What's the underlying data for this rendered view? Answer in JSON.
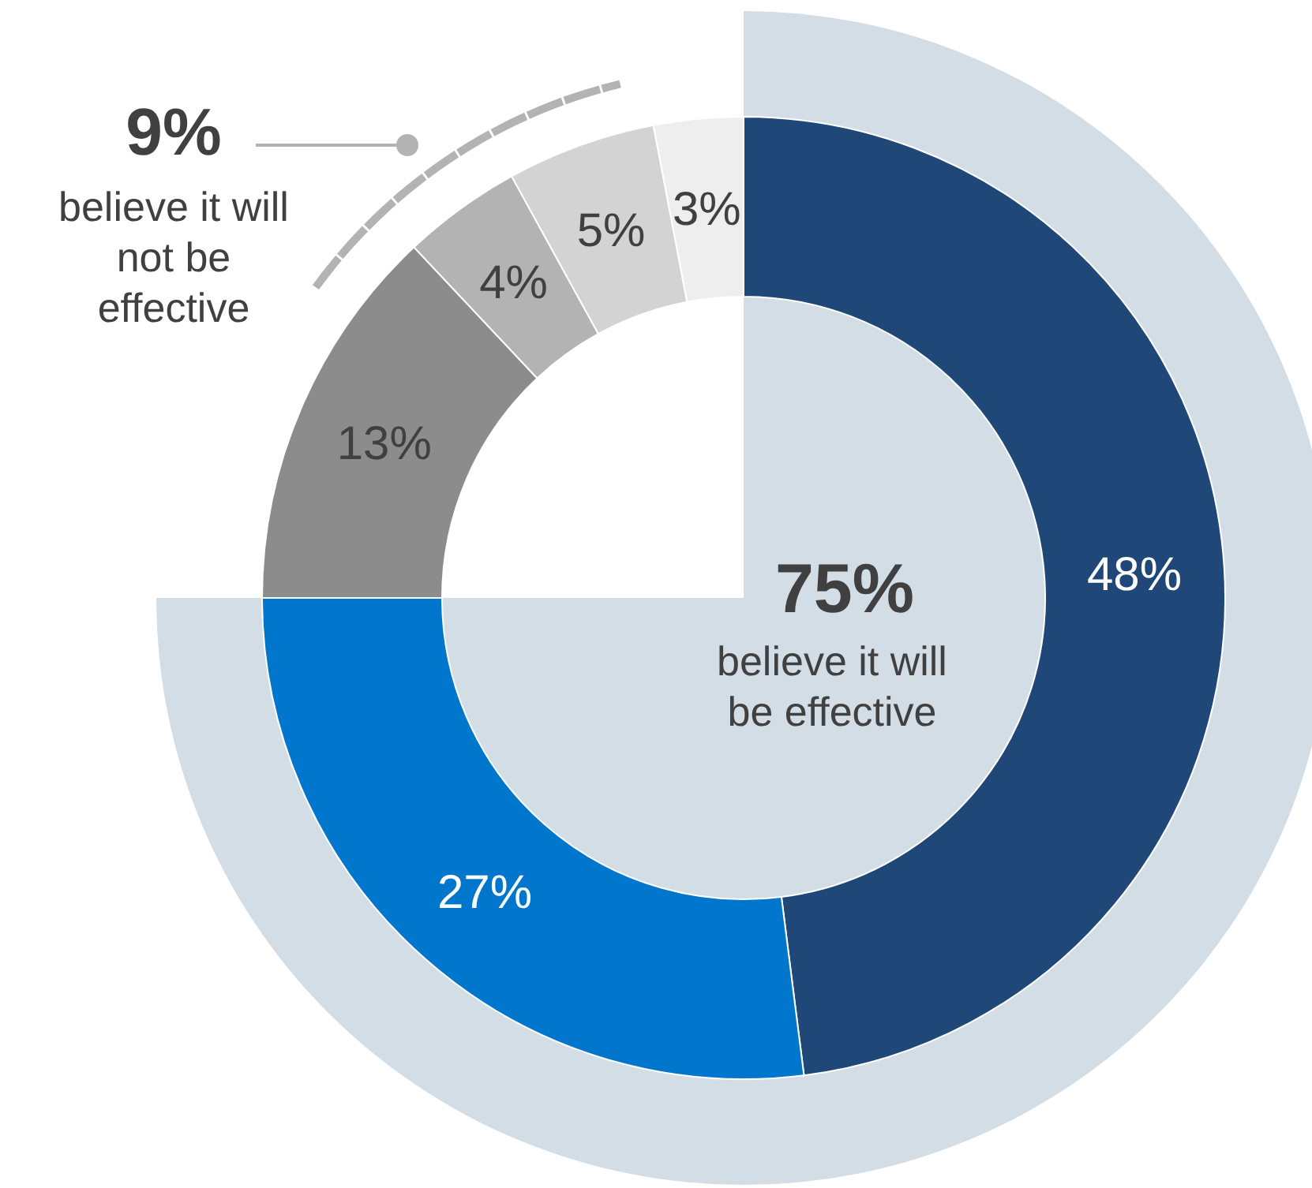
{
  "chart_data": {
    "type": "donut",
    "categories": [
      null,
      null,
      null,
      null,
      null,
      null
    ],
    "values": [
      48,
      27,
      13,
      4,
      5,
      3
    ],
    "colors": [
      "#1f4778",
      "#0077cc",
      "#8c8c8c",
      "#b3b3b3",
      "#d3d3d3",
      "#eeeeee"
    ],
    "value_labels": [
      "48%",
      "27%",
      "13%",
      "4%",
      "5%",
      "3%"
    ],
    "annotations": [
      "75%",
      "believe it will be effective",
      "9%",
      "believe it will not be effective"
    ]
  }
}
